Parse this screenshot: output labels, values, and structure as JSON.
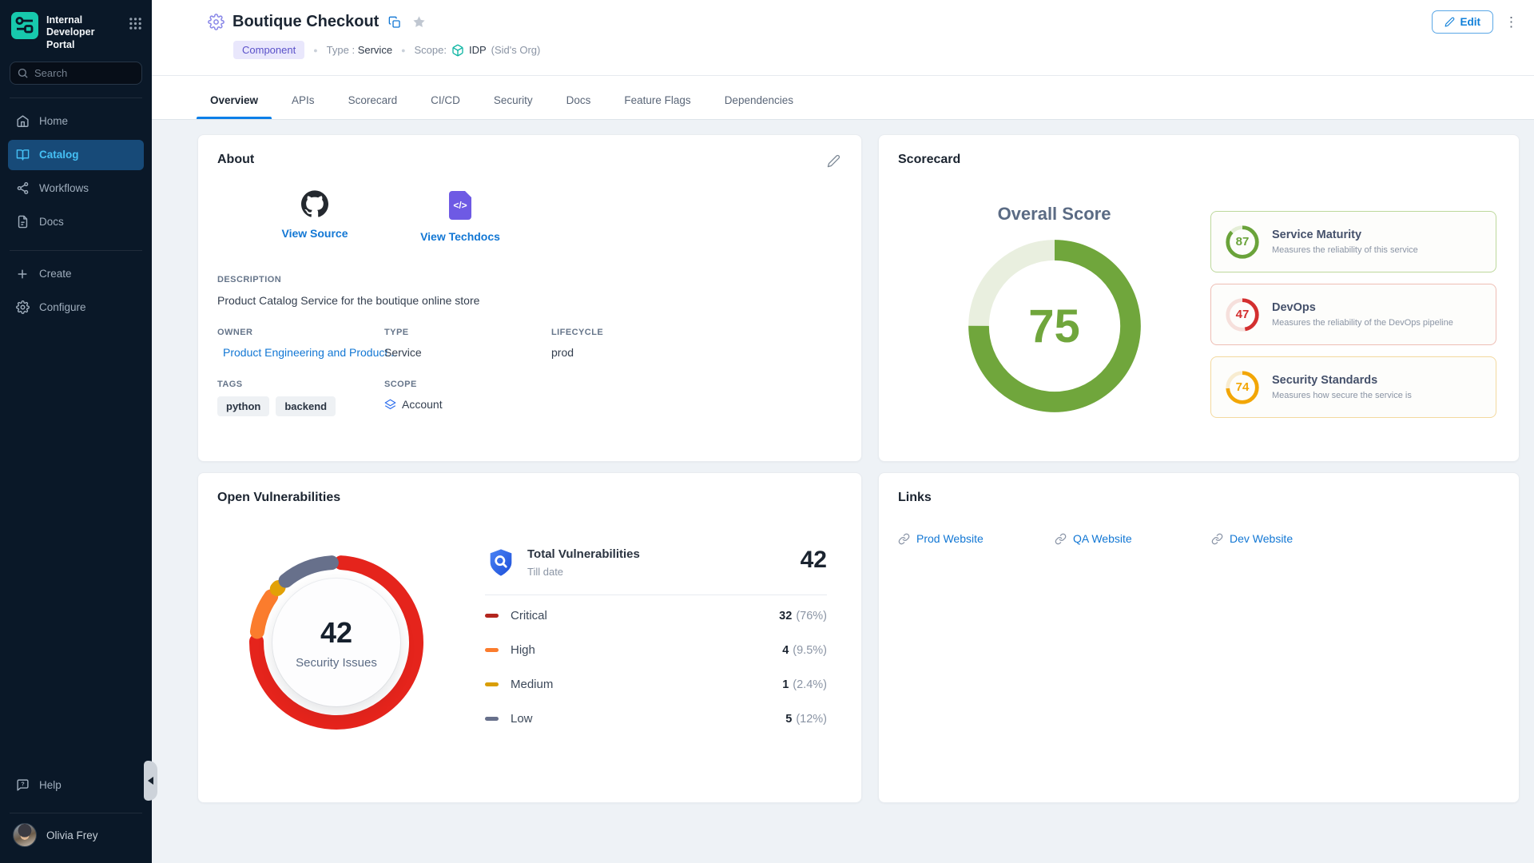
{
  "colors": {
    "accent_blue": "#1277d4",
    "sidebar_bg": "#0a1828",
    "sidebar_active_bg": "#174a78",
    "sidebar_active_text": "#45c0f5",
    "badge_bg": "#e9e7fc",
    "badge_text": "#5a51c9",
    "tab_underline": "#0b7fe8"
  },
  "sidebar": {
    "logo_line1": "Internal",
    "logo_line2": "Developer Portal",
    "search_placeholder": "Search",
    "nav": [
      {
        "label": "Home"
      },
      {
        "label": "Catalog"
      },
      {
        "label": "Workflows"
      },
      {
        "label": "Docs"
      }
    ],
    "actions": [
      {
        "label": "Create"
      },
      {
        "label": "Configure"
      }
    ],
    "help_label": "Help",
    "user_name": "Olivia Frey"
  },
  "header": {
    "title": "Boutique Checkout",
    "entity_badge": "Component",
    "type_label": "Type :",
    "type_value": "Service",
    "scope_label": "Scope:",
    "scope_value": "IDP",
    "scope_org": "(Sid's Org)",
    "edit_label": "Edit"
  },
  "tabs": [
    "Overview",
    "APIs",
    "Scorecard",
    "CI/CD",
    "Security",
    "Docs",
    "Feature Flags",
    "Dependencies"
  ],
  "about": {
    "title": "About",
    "view_source_label": "View Source",
    "view_techdocs_label": "View Techdocs",
    "description_label": "DESCRIPTION",
    "description": "Product Catalog Service for the boutique online store",
    "owner_label": "OWNER",
    "owner": "Product Engineering and Product...",
    "type_label": "TYPE",
    "type": "Service",
    "lifecycle_label": "LIFECYCLE",
    "lifecycle": "prod",
    "tags_label": "TAGS",
    "tags": [
      "python",
      "backend"
    ],
    "scope_label": "SCOPE",
    "scope": "Account"
  },
  "scorecard": {
    "title": "Scorecard"
  },
  "vulnerabilities": {
    "title": "Open Vulnerabilities",
    "total_label": "Total Vulnerabilities",
    "total_sub": "Till date",
    "total_value": "42"
  },
  "links_card": {
    "title": "Links",
    "items": [
      {
        "label": "Prod Website"
      },
      {
        "label": "QA Website"
      },
      {
        "label": "Dev Website"
      }
    ]
  },
  "chart_data": [
    {
      "type": "donut-gauge",
      "title": "Overall Score",
      "value": 75,
      "max": 100,
      "color": "#70a63c",
      "track_color": "#e9efdf"
    },
    {
      "type": "gauge-list",
      "items": [
        {
          "label": "Service Maturity",
          "description": "Measures the reliability of this service",
          "value": 87,
          "max": 100,
          "color": "#6aa33a",
          "track_color": "#e4eed6",
          "border_color": "#bdd89c"
        },
        {
          "label": "DevOps",
          "description": "Measures the reliability of the DevOps pipeline",
          "value": 47,
          "max": 100,
          "color": "#d32f2f",
          "track_color": "#f6e0dc",
          "border_color": "#eebdb4"
        },
        {
          "label": "Security Standards",
          "description": "Measures how secure the service is",
          "value": 74,
          "max": 100,
          "color": "#f2a606",
          "track_color": "#f8ecd0",
          "border_color": "#f3d99f"
        }
      ]
    },
    {
      "type": "donut",
      "title": "Open Vulnerabilities",
      "center_value": "42",
      "center_label": "Security Issues",
      "total": 42,
      "segments": [
        {
          "label": "Critical",
          "value": 32,
          "pct": "(76%)",
          "color": "#e5241c",
          "legend_color": "#b3261e"
        },
        {
          "label": "High",
          "value": 4,
          "pct": "(9.5%)",
          "color": "#fb7c2d",
          "legend_color": "#fb7c2d"
        },
        {
          "label": "Medium",
          "value": 1,
          "pct": "(2.4%)",
          "color": "#e2a106",
          "legend_color": "#d99e06"
        },
        {
          "label": "Low",
          "value": 5,
          "pct": "(12%)",
          "color": "#67708b",
          "legend_color": "#67708b"
        }
      ]
    }
  ]
}
